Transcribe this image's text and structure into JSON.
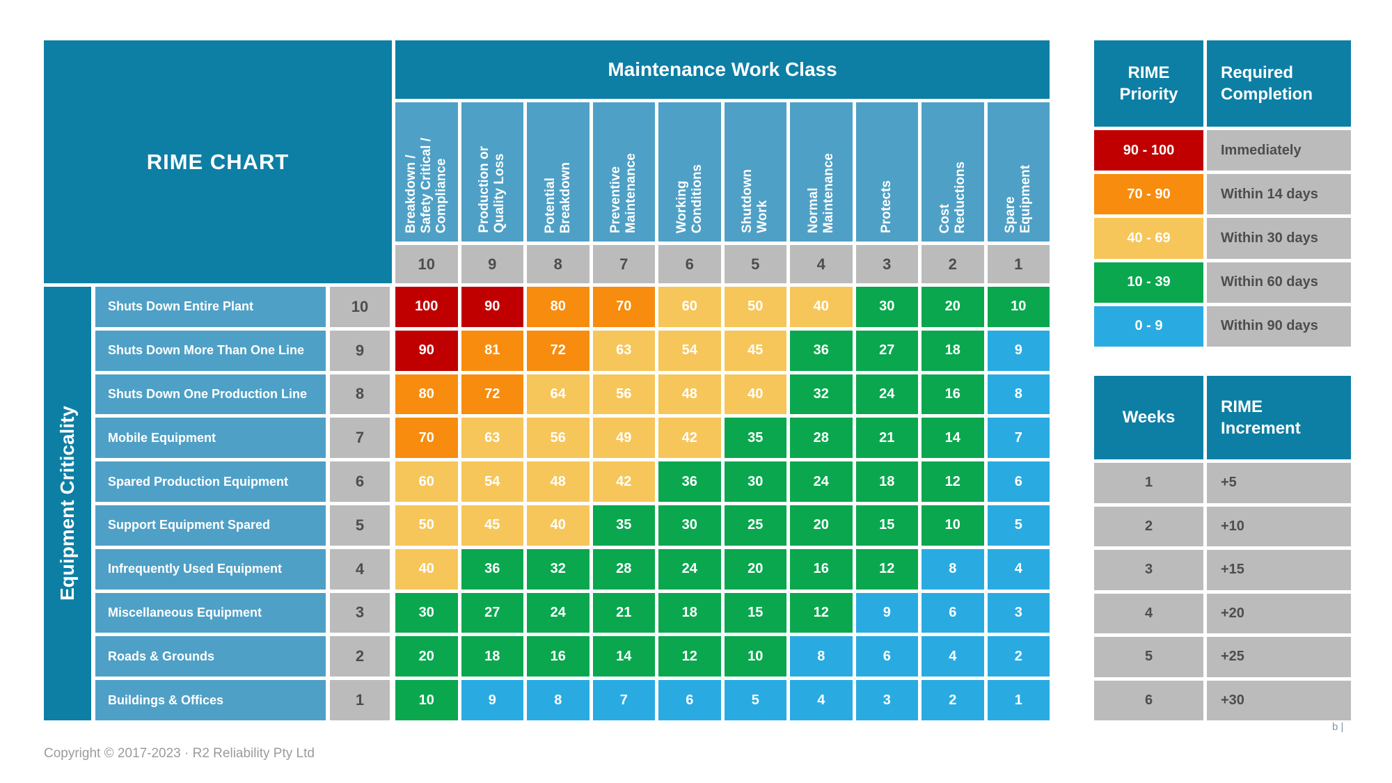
{
  "chart_data": {
    "type": "heatmap",
    "title": "RIME CHART",
    "work_class_header": "Maintenance Work Class",
    "criticality_header": "Equipment Criticality",
    "columns": [
      {
        "label": "Breakdown /\nSafety Critical /\nCompliance",
        "weight": 10
      },
      {
        "label": "Production or\nQuality Loss",
        "weight": 9
      },
      {
        "label": "Potential\nBreakdown",
        "weight": 8
      },
      {
        "label": "Preventive\nMaintenance",
        "weight": 7
      },
      {
        "label": "Working\nConditions",
        "weight": 6
      },
      {
        "label": "Shutdown\nWork",
        "weight": 5
      },
      {
        "label": "Normal\nMaintenance",
        "weight": 4
      },
      {
        "label": "Protects",
        "weight": 3
      },
      {
        "label": "Cost\nReductions",
        "weight": 2
      },
      {
        "label": "Spare\nEquipment",
        "weight": 1
      }
    ],
    "rows": [
      {
        "label": "Shuts Down Entire Plant",
        "weight": 10,
        "values": [
          100,
          90,
          80,
          70,
          60,
          50,
          40,
          30,
          20,
          10
        ]
      },
      {
        "label": "Shuts Down  More Than One Line",
        "weight": 9,
        "values": [
          90,
          81,
          72,
          63,
          54,
          45,
          36,
          27,
          18,
          9
        ]
      },
      {
        "label": "Shuts Down One Production Line",
        "weight": 8,
        "values": [
          80,
          72,
          64,
          56,
          48,
          40,
          32,
          24,
          16,
          8
        ]
      },
      {
        "label": "Mobile Equipment",
        "weight": 7,
        "values": [
          70,
          63,
          56,
          49,
          42,
          35,
          28,
          21,
          14,
          7
        ]
      },
      {
        "label": "Spared Production Equipment",
        "weight": 6,
        "values": [
          60,
          54,
          48,
          42,
          36,
          30,
          24,
          18,
          12,
          6
        ]
      },
      {
        "label": "Support Equipment Spared",
        "weight": 5,
        "values": [
          50,
          45,
          40,
          35,
          30,
          25,
          20,
          15,
          10,
          5
        ]
      },
      {
        "label": "Infrequently Used Equipment",
        "weight": 4,
        "values": [
          40,
          36,
          32,
          28,
          24,
          20,
          16,
          12,
          8,
          4
        ]
      },
      {
        "label": "Miscellaneous Equipment",
        "weight": 3,
        "values": [
          30,
          27,
          24,
          21,
          18,
          15,
          12,
          9,
          6,
          3
        ]
      },
      {
        "label": "Roads & Grounds",
        "weight": 2,
        "values": [
          20,
          18,
          16,
          14,
          12,
          10,
          8,
          6,
          4,
          2
        ]
      },
      {
        "label": "Buildings & Offices",
        "weight": 1,
        "values": [
          10,
          9,
          8,
          7,
          6,
          5,
          4,
          3,
          2,
          1
        ]
      }
    ],
    "value_colors": [
      {
        "min": 90,
        "color": "#c00000"
      },
      {
        "min": 70,
        "color": "#f78c0e"
      },
      {
        "min": 40,
        "color": "#f6c65a"
      },
      {
        "min": 10,
        "color": "#0aa74f"
      },
      {
        "min": 0,
        "color": "#29abe2"
      }
    ]
  },
  "priority_table": {
    "header_range": "RIME\nPriority",
    "header_completion": "Required\nCompletion",
    "rows": [
      {
        "range": "90 - 100",
        "completion": "Immediately",
        "color": "#c00000"
      },
      {
        "range": "70 - 90",
        "completion": "Within 14 days",
        "color": "#f78c0e"
      },
      {
        "range": "40 - 69",
        "completion": "Within 30 days",
        "color": "#f6c65a"
      },
      {
        "range": "10 - 39",
        "completion": "Within 60 days",
        "color": "#0aa74f"
      },
      {
        "range": "0 - 9",
        "completion": "Within 90 days",
        "color": "#29abe2"
      }
    ]
  },
  "increment_table": {
    "header_weeks": "Weeks",
    "header_increment": "RIME\nIncrement",
    "rows": [
      {
        "weeks": "1",
        "increment": "+5"
      },
      {
        "weeks": "2",
        "increment": "+10"
      },
      {
        "weeks": "3",
        "increment": "+15"
      },
      {
        "weeks": "4",
        "increment": "+20"
      },
      {
        "weeks": "5",
        "increment": "+25"
      },
      {
        "weeks": "6",
        "increment": "+30"
      }
    ]
  },
  "footer": {
    "copyright": "Copyright © 2017-2023 ·  R2 Reliability Pty Ltd",
    "corner_text": "b |"
  }
}
